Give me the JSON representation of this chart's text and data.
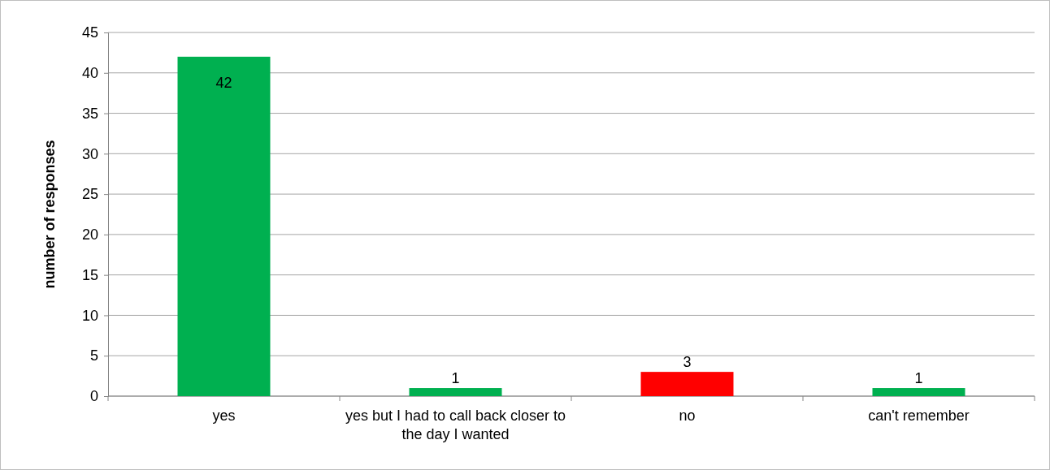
{
  "chart_data": {
    "type": "bar",
    "ylabel": "number of responses",
    "categories": [
      "yes",
      "yes but I had to call back closer to the day I wanted",
      "no",
      "can't remember"
    ],
    "values": [
      42,
      1,
      3,
      1
    ],
    "colors": [
      "#00b050",
      "#00b050",
      "#ff0000",
      "#00b050"
    ],
    "ylim": [
      0,
      45
    ],
    "yticks": [
      0,
      5,
      10,
      15,
      20,
      25,
      30,
      35,
      40,
      45
    ],
    "grid": "y",
    "data_labels": true
  }
}
